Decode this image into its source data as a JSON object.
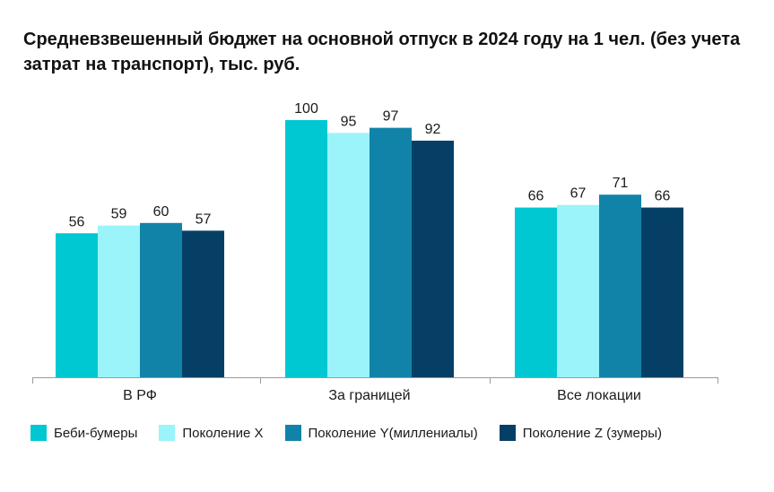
{
  "title": "Средневзвешенный бюджет на основной отпуск в 2024 году на 1 чел. (без учета затрат на транспорт), тыс. руб.",
  "chart_data": {
    "type": "bar",
    "categories": [
      "В РФ",
      "За границей",
      "Все локации"
    ],
    "series": [
      {
        "name": "Беби-бумеры",
        "color": "#00C8D2",
        "values": [
          56,
          100,
          66
        ]
      },
      {
        "name": "Поколение X",
        "color": "#9AF4FA",
        "values": [
          59,
          95,
          67
        ]
      },
      {
        "name": "Поколение Y(миллениалы)",
        "color": "#1283A8",
        "values": [
          60,
          97,
          71
        ]
      },
      {
        "name": "Поколение Z (зумеры)",
        "color": "#053F66",
        "values": [
          57,
          92,
          66
        ]
      }
    ],
    "ylim": [
      0,
      100
    ],
    "grid": false,
    "data_labels": true,
    "legend_position": "bottom"
  }
}
